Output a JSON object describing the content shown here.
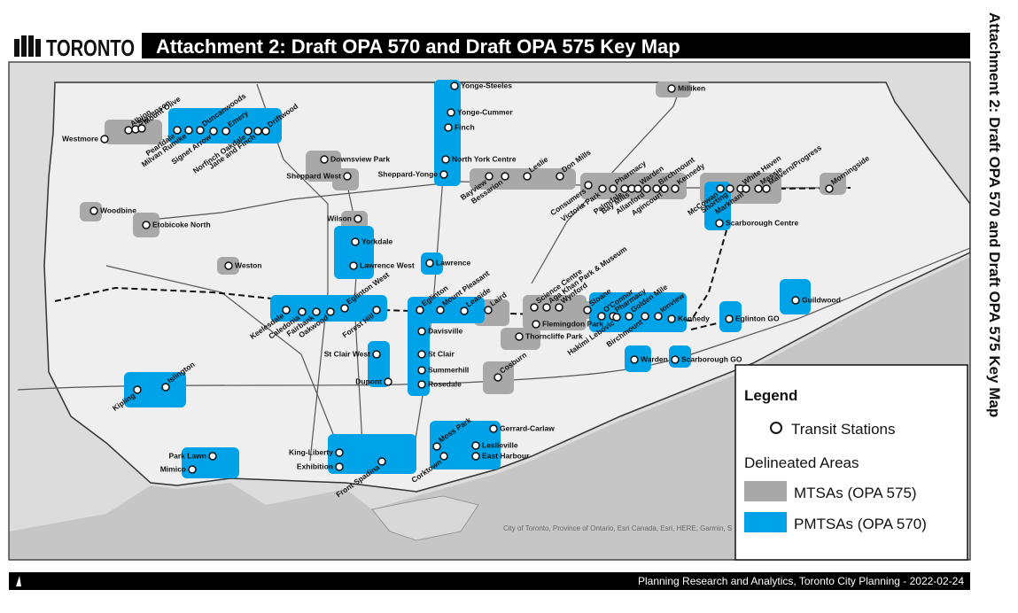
{
  "header": {
    "logo": "TORONTO",
    "title": "Attachment 2: Draft OPA 570 and Draft OPA 575 Key Map"
  },
  "side_title": "Attachment 2: Draft OPA 570 and Draft OPA 575 Key Map",
  "map": {
    "stations": [
      "Yonge-Steeles",
      "Yonge-Cummer",
      "Finch",
      "North York Centre",
      "Sheppard-Yonge",
      "Downsview Park",
      "Sheppard West",
      "Wilson",
      "Yorkdale",
      "Lawrence West",
      "Lawrence",
      "Eglinton",
      "Mount Pleasant",
      "Leaside",
      "Laird",
      "Davisville",
      "St Clair",
      "Summerhill",
      "Rosedale",
      "St Clair West",
      "Dupont",
      "Keelesdale",
      "Caledonia",
      "Fairbank",
      "Oakwood",
      "Eglinton West",
      "Forest Hill",
      "Weston",
      "Woodbine",
      "Etobicoke North",
      "Westmore",
      "Albion",
      "Stevenson",
      "Mount Olive",
      "Pearldale",
      "Milvan Rumike",
      "Duncanwoods",
      "Signet Arrow",
      "Emery",
      "Norfinch Oakdale",
      "Jane and Finch",
      "Driftwood",
      "Bayview",
      "Bessarion",
      "Leslie",
      "Don Mills",
      "Consumers",
      "Victoria Park",
      "Pharmacy",
      "Palmdale",
      "Bay Mills",
      "Warden",
      "Allanford",
      "Birchmount",
      "Agincourt",
      "Kennedy",
      "Milliken",
      "McCowan",
      "Shorting",
      "White Haven",
      "Markham",
      "Massie",
      "Malvern/Progress",
      "Morningside",
      "Scarborough Centre",
      "Science Centre",
      "Aga Khan Park & Museum",
      "Wynford",
      "Sloane",
      "O'Connor",
      "Pharmacy",
      "Golden Mile",
      "Hakimi Lebovic",
      "Birchmount",
      "Ionview",
      "Kennedy",
      "Flemingdon Park",
      "Thorncliffe Park",
      "Cosburn",
      "Warden",
      "Scarborough GO",
      "Eglinton GO",
      "Guildwood",
      "Kipling",
      "Islington",
      "Park Lawn",
      "Mimico",
      "King-Liberty",
      "Exhibition",
      "Front-Spadina",
      "Moss Park",
      "Corktown",
      "Gerrard-Carlaw",
      "Leslieville",
      "East Harbour"
    ],
    "attribution": "City of Toronto, Province of Ontario, Esri Canada, Esri, HERE, Garmin, S"
  },
  "legend": {
    "title": "Legend",
    "transit": "Transit Stations",
    "section": "Delineated Areas",
    "mtsa": "MTSAs (OPA 575)",
    "pmtsa": "PMTSAs (OPA 570)"
  },
  "footer": "Planning Research and Analytics, Toronto City Planning - 2022-02-24"
}
